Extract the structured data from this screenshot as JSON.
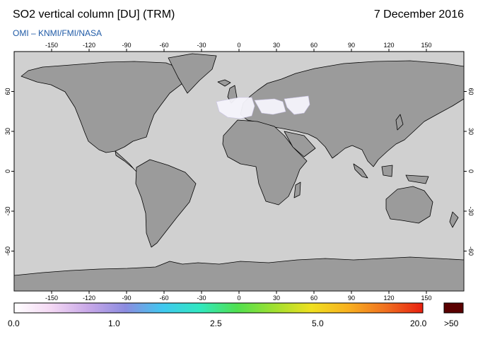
{
  "header": {
    "title": "SO2 vertical column [DU] (TRM)",
    "date": "7 December 2016",
    "source": "OMI  –  KNMI/FMI/NASA"
  },
  "map": {
    "lon_ticks": [
      "-150",
      "-120",
      "-90",
      "-60",
      "-30",
      "0",
      "30",
      "60",
      "90",
      "120",
      "150"
    ],
    "lat_ticks": [
      "60",
      "30",
      "0",
      "-30",
      "-60"
    ],
    "colors": {
      "ocean": "#d0d0d0",
      "land": "#9b9b9b",
      "coast": "#000000",
      "coverage": "#f6f4fc"
    }
  },
  "colorbar": {
    "labels": [
      "0.0",
      "1.0",
      "2.5",
      "5.0",
      "20.0"
    ],
    "overflow_label": ">50",
    "overflow_color": "#5a0000",
    "gradient": [
      "#ffffff",
      "#f4d8f4",
      "#c8a8e8",
      "#8c8ce0",
      "#40c8f0",
      "#30e8c0",
      "#50e050",
      "#a0e030",
      "#f0e020",
      "#f8b020",
      "#f07020",
      "#e82010"
    ]
  }
}
